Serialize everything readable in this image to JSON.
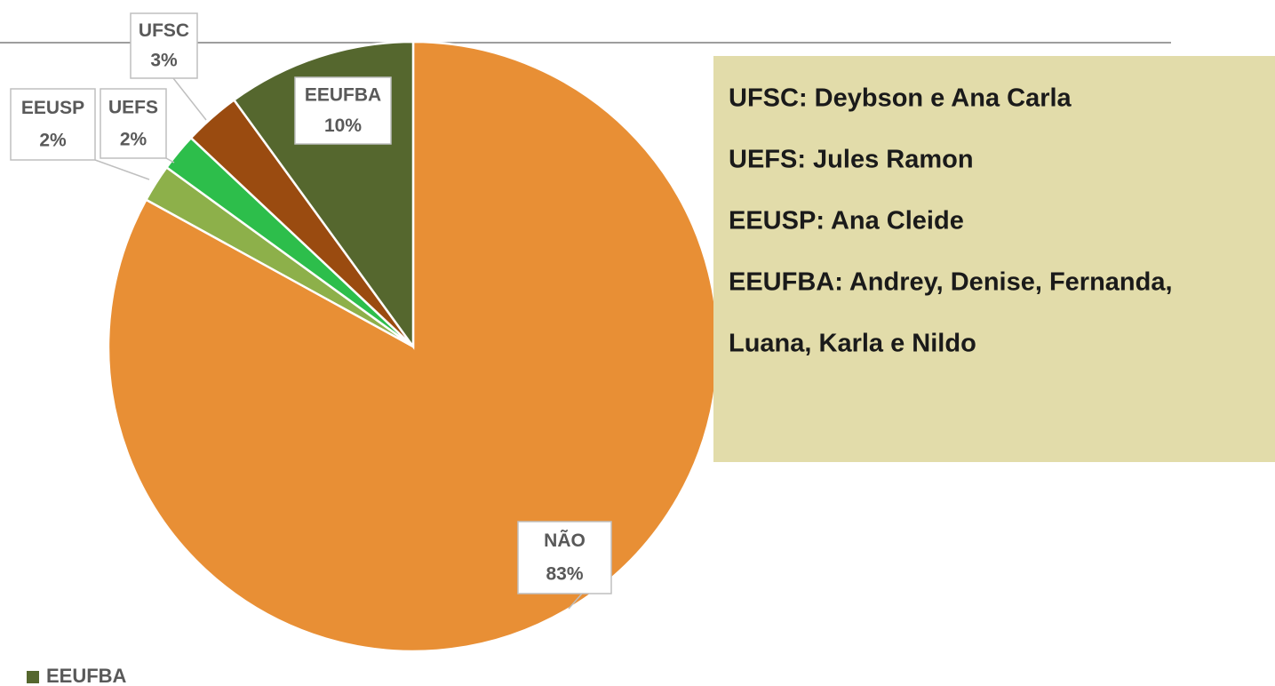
{
  "chart_data": {
    "type": "pie",
    "categories": [
      "NÃO",
      "EEUSP",
      "UEFS",
      "UFSC",
      "EEUFBA"
    ],
    "values": [
      83,
      2,
      2,
      3,
      10
    ],
    "value_labels": [
      "83%",
      "2%",
      "2%",
      "3%",
      "10%"
    ],
    "colors": [
      "#E88F35",
      "#8DB04A",
      "#2DBE4B",
      "#9A4B10",
      "#55672E"
    ],
    "annotations": [
      "UFSC: Deybson e Ana Carla",
      "UEFS: Jules Ramon",
      "EEUSP: Ana Cleide",
      "EEUFBA: Andrey, Denise, Fernanda,",
      "Luana, Karla e Nildo"
    ]
  }
}
